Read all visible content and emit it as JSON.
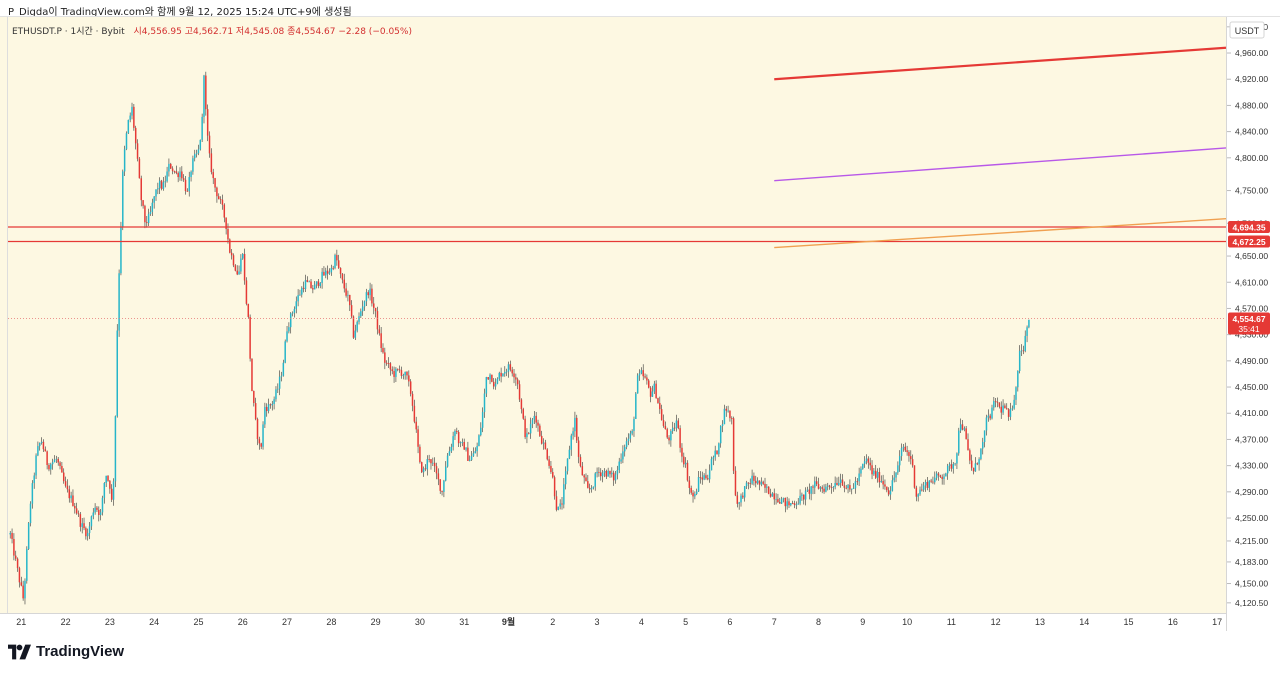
{
  "caption": "P_Digda이 TradingView.com와 함께 9월 12, 2025 15:24 UTC+9에 생성됨",
  "legend": {
    "symbol": "ETHUSDT.P · 1시간 · Bybit",
    "ohlc": "시4,556.95  고4,562.71  저4,545.08  종4,554.67  −2.28 (−0.05%)"
  },
  "brand": {
    "name": "TradingView",
    "logo_icon": "tradingview-logo-icon"
  },
  "colors": {
    "background": "#fdf8e2",
    "up": "#26b5c9",
    "down": "#e53935",
    "wick": "#333333",
    "level_line": "#e53935",
    "price_line": "#e57373",
    "trend_red": "#e53935",
    "trend_purple": "#b858e8",
    "trend_orange": "#f0a050"
  },
  "chart_data": {
    "type": "candlestick",
    "title": "",
    "symbol": "ETHUSDT.P",
    "interval": "1시간",
    "exchange": "Bybit",
    "currency_label": "USDT",
    "ylim": [
      4105,
      5015
    ],
    "y_ticks": [
      "5,000.00",
      "4,960.00",
      "4,920.00",
      "4,880.00",
      "4,840.00",
      "4,800.00",
      "4,750.00",
      "4,700.00",
      "4,650.00",
      "4,610.00",
      "4,570.00",
      "4,530.00",
      "4,490.00",
      "4,450.00",
      "4,410.00",
      "4,370.00",
      "4,330.00",
      "4,290.00",
      "4,250.00",
      "4,215.00",
      "4,183.00",
      "4,150.00",
      "4,120.50"
    ],
    "y_tick_values": [
      5000,
      4960,
      4920,
      4880,
      4840,
      4800,
      4750,
      4700,
      4650,
      4610,
      4570,
      4530,
      4490,
      4450,
      4410,
      4370,
      4330,
      4290,
      4250,
      4215,
      4183,
      4150,
      4120.5
    ],
    "x_tick_labels": [
      "21",
      "22",
      "23",
      "24",
      "25",
      "26",
      "27",
      "28",
      "29",
      "30",
      "31",
      "9월",
      "2",
      "3",
      "4",
      "5",
      "6",
      "7",
      "8",
      "9",
      "10",
      "11",
      "12",
      "13",
      "14",
      "15",
      "16",
      "17"
    ],
    "x_tick_days": [
      0,
      1,
      2,
      3,
      4,
      5,
      6,
      7,
      8,
      9,
      10,
      11,
      12,
      13,
      14,
      15,
      16,
      17,
      18,
      19,
      20,
      21,
      22,
      23,
      24,
      25,
      26,
      27
    ],
    "x_range_days": [
      -0.3,
      27.2
    ],
    "horizontal_levels": [
      {
        "value": 4694.35,
        "label": "4,694.35"
      },
      {
        "value": 4672.25,
        "label": "4,672.25"
      }
    ],
    "last_price": {
      "value": 4554.67,
      "label": "4,554.67",
      "countdown": "35:41"
    },
    "trend_lines": [
      {
        "color": "red",
        "from": {
          "day": 17.0,
          "price": 4920
        },
        "to": {
          "day": 27.2,
          "price": 4968
        }
      },
      {
        "color": "purple",
        "from": {
          "day": 17.0,
          "price": 4765
        },
        "to": {
          "day": 27.2,
          "price": 4815
        }
      },
      {
        "color": "orange",
        "from": {
          "day": 17.0,
          "price": 4663
        },
        "to": {
          "day": 27.2,
          "price": 4707
        }
      }
    ],
    "price_anchors": [
      [
        -0.25,
        4225
      ],
      [
        -0.1,
        4175
      ],
      [
        0.05,
        4125
      ],
      [
        0.2,
        4270
      ],
      [
        0.35,
        4350
      ],
      [
        0.45,
        4370
      ],
      [
        0.6,
        4330
      ],
      [
        0.8,
        4340
      ],
      [
        1.0,
        4295
      ],
      [
        1.2,
        4270
      ],
      [
        1.35,
        4240
      ],
      [
        1.5,
        4225
      ],
      [
        1.65,
        4270
      ],
      [
        1.8,
        4255
      ],
      [
        1.9,
        4320
      ],
      [
        2.0,
        4300
      ],
      [
        2.05,
        4270
      ],
      [
        2.1,
        4330
      ],
      [
        2.18,
        4580
      ],
      [
        2.24,
        4680
      ],
      [
        2.3,
        4790
      ],
      [
        2.4,
        4850
      ],
      [
        2.5,
        4875
      ],
      [
        2.6,
        4810
      ],
      [
        2.7,
        4740
      ],
      [
        2.8,
        4700
      ],
      [
        2.9,
        4710
      ],
      [
        3.0,
        4740
      ],
      [
        3.1,
        4760
      ],
      [
        3.2,
        4755
      ],
      [
        3.35,
        4790
      ],
      [
        3.5,
        4775
      ],
      [
        3.6,
        4780
      ],
      [
        3.75,
        4745
      ],
      [
        3.85,
        4790
      ],
      [
        4.0,
        4810
      ],
      [
        4.08,
        4850
      ],
      [
        4.12,
        4940
      ],
      [
        4.18,
        4850
      ],
      [
        4.25,
        4800
      ],
      [
        4.35,
        4760
      ],
      [
        4.45,
        4740
      ],
      [
        4.55,
        4720
      ],
      [
        4.62,
        4700
      ],
      [
        4.7,
        4660
      ],
      [
        4.8,
        4640
      ],
      [
        4.9,
        4620
      ],
      [
        5.0,
        4660
      ],
      [
        5.05,
        4600
      ],
      [
        5.12,
        4560
      ],
      [
        5.2,
        4450
      ],
      [
        5.3,
        4390
      ],
      [
        5.4,
        4350
      ],
      [
        5.5,
        4420
      ],
      [
        5.6,
        4420
      ],
      [
        5.7,
        4430
      ],
      [
        5.8,
        4450
      ],
      [
        5.9,
        4480
      ],
      [
        6.0,
        4540
      ],
      [
        6.2,
        4580
      ],
      [
        6.4,
        4610
      ],
      [
        6.6,
        4600
      ],
      [
        6.8,
        4620
      ],
      [
        7.0,
        4630
      ],
      [
        7.1,
        4650
      ],
      [
        7.2,
        4620
      ],
      [
        7.3,
        4600
      ],
      [
        7.4,
        4580
      ],
      [
        7.5,
        4530
      ],
      [
        7.6,
        4550
      ],
      [
        7.7,
        4575
      ],
      [
        7.85,
        4600
      ],
      [
        8.0,
        4560
      ],
      [
        8.1,
        4520
      ],
      [
        8.2,
        4490
      ],
      [
        8.4,
        4470
      ],
      [
        8.55,
        4475
      ],
      [
        8.7,
        4465
      ],
      [
        8.8,
        4440
      ],
      [
        8.9,
        4390
      ],
      [
        9.0,
        4330
      ],
      [
        9.1,
        4320
      ],
      [
        9.2,
        4345
      ],
      [
        9.3,
        4330
      ],
      [
        9.4,
        4310
      ],
      [
        9.5,
        4290
      ],
      [
        9.6,
        4340
      ],
      [
        9.7,
        4360
      ],
      [
        9.8,
        4390
      ],
      [
        9.9,
        4360
      ],
      [
        10.0,
        4360
      ],
      [
        10.1,
        4340
      ],
      [
        10.2,
        4345
      ],
      [
        10.3,
        4360
      ],
      [
        10.4,
        4400
      ],
      [
        10.5,
        4465
      ],
      [
        10.6,
        4470
      ],
      [
        10.7,
        4450
      ],
      [
        10.8,
        4470
      ],
      [
        11.0,
        4480
      ],
      [
        11.1,
        4475
      ],
      [
        11.2,
        4460
      ],
      [
        11.3,
        4410
      ],
      [
        11.4,
        4370
      ],
      [
        11.5,
        4390
      ],
      [
        11.6,
        4410
      ],
      [
        11.7,
        4380
      ],
      [
        11.8,
        4360
      ],
      [
        11.9,
        4340
      ],
      [
        12.0,
        4310
      ],
      [
        12.1,
        4260
      ],
      [
        12.2,
        4270
      ],
      [
        12.3,
        4320
      ],
      [
        12.4,
        4370
      ],
      [
        12.5,
        4400
      ],
      [
        12.6,
        4330
      ],
      [
        12.7,
        4310
      ],
      [
        12.8,
        4290
      ],
      [
        12.9,
        4300
      ],
      [
        13.0,
        4320
      ],
      [
        13.2,
        4320
      ],
      [
        13.4,
        4310
      ],
      [
        13.6,
        4360
      ],
      [
        13.8,
        4380
      ],
      [
        13.9,
        4460
      ],
      [
        14.0,
        4470
      ],
      [
        14.1,
        4460
      ],
      [
        14.2,
        4440
      ],
      [
        14.3,
        4450
      ],
      [
        14.4,
        4420
      ],
      [
        14.5,
        4390
      ],
      [
        14.6,
        4370
      ],
      [
        14.7,
        4380
      ],
      [
        14.8,
        4400
      ],
      [
        14.9,
        4350
      ],
      [
        15.0,
        4330
      ],
      [
        15.1,
        4290
      ],
      [
        15.2,
        4280
      ],
      [
        15.3,
        4310
      ],
      [
        15.5,
        4315
      ],
      [
        15.6,
        4340
      ],
      [
        15.7,
        4350
      ],
      [
        15.8,
        4390
      ],
      [
        15.9,
        4420
      ],
      [
        16.0,
        4405
      ],
      [
        16.05,
        4400
      ],
      [
        16.1,
        4290
      ],
      [
        16.2,
        4270
      ],
      [
        16.3,
        4290
      ],
      [
        16.5,
        4310
      ],
      [
        16.7,
        4300
      ],
      [
        16.9,
        4290
      ],
      [
        17.1,
        4280
      ],
      [
        17.3,
        4270
      ],
      [
        17.5,
        4275
      ],
      [
        17.7,
        4285
      ],
      [
        17.9,
        4300
      ],
      [
        18.1,
        4295
      ],
      [
        18.3,
        4300
      ],
      [
        18.5,
        4310
      ],
      [
        18.7,
        4290
      ],
      [
        18.9,
        4310
      ],
      [
        19.0,
        4330
      ],
      [
        19.1,
        4340
      ],
      [
        19.2,
        4320
      ],
      [
        19.4,
        4310
      ],
      [
        19.5,
        4300
      ],
      [
        19.6,
        4290
      ],
      [
        19.7,
        4310
      ],
      [
        19.8,
        4330
      ],
      [
        19.9,
        4360
      ],
      [
        20.1,
        4340
      ],
      [
        20.2,
        4285
      ],
      [
        20.4,
        4300
      ],
      [
        20.6,
        4310
      ],
      [
        20.8,
        4315
      ],
      [
        21.0,
        4330
      ],
      [
        21.1,
        4340
      ],
      [
        21.2,
        4400
      ],
      [
        21.3,
        4380
      ],
      [
        21.4,
        4340
      ],
      [
        21.5,
        4320
      ],
      [
        21.6,
        4340
      ],
      [
        21.7,
        4360
      ],
      [
        21.8,
        4400
      ],
      [
        21.9,
        4410
      ],
      [
        22.0,
        4430
      ],
      [
        22.1,
        4415
      ],
      [
        22.2,
        4420
      ],
      [
        22.3,
        4400
      ],
      [
        22.4,
        4430
      ],
      [
        22.5,
        4470
      ],
      [
        22.55,
        4520
      ],
      [
        22.6,
        4500
      ],
      [
        22.65,
        4520
      ],
      [
        22.7,
        4545
      ],
      [
        22.75,
        4555
      ]
    ]
  }
}
